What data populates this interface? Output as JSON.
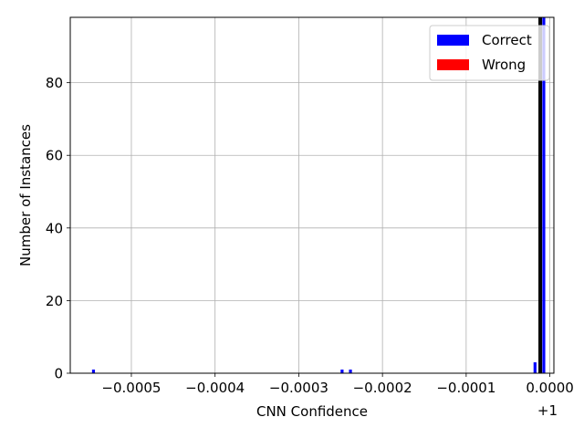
{
  "chart_data": {
    "type": "bar",
    "title": "",
    "xlabel": "CNN Confidence",
    "ylabel": "Number of Instances",
    "x_offset_label": "+1",
    "xlim": [
      -0.000573,
      4.8e-06
    ],
    "ylim": [
      0,
      98
    ],
    "x_ticks": [
      -0.0005,
      -0.0004,
      -0.0003,
      -0.0002,
      -0.0001,
      0.0
    ],
    "x_tick_labels": [
      "−0.0005",
      "−0.0004",
      "−0.0003",
      "−0.0002",
      "−0.0001",
      "0.0000"
    ],
    "y_ticks": [
      0,
      20,
      40,
      60,
      80
    ],
    "y_tick_labels": [
      "0",
      "20",
      "40",
      "60",
      "80"
    ],
    "grid": true,
    "legend_position": "top-right",
    "vline_x": -1.15e-05,
    "vline_color": "#000000",
    "series": [
      {
        "name": "Correct",
        "color": "#0000ff",
        "bars": [
          {
            "x0": -0.000547,
            "x1": -0.0005435,
            "count": 1
          },
          {
            "x0": -0.00025,
            "x1": -0.0002465,
            "count": 1
          },
          {
            "x0": -0.00024,
            "x1": -0.0002365,
            "count": 1
          },
          {
            "x0": -1.95e-05,
            "x1": -1.6e-05,
            "count": 3
          },
          {
            "x0": -9e-06,
            "x1": -5.5e-06,
            "count": 98
          }
        ]
      },
      {
        "name": "Wrong",
        "color": "#ff0000",
        "bars": []
      }
    ]
  }
}
